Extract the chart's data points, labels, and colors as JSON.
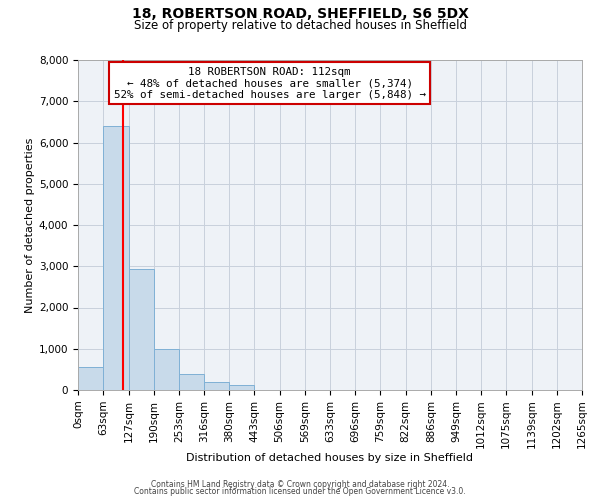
{
  "title": "18, ROBERTSON ROAD, SHEFFIELD, S6 5DX",
  "subtitle": "Size of property relative to detached houses in Sheffield",
  "xlabel": "Distribution of detached houses by size in Sheffield",
  "ylabel": "Number of detached properties",
  "bin_edges": [
    0,
    63,
    127,
    190,
    253,
    316,
    380,
    443,
    506,
    569,
    633,
    696,
    759,
    822,
    886,
    949,
    1012,
    1075,
    1139,
    1202,
    1265
  ],
  "bin_labels": [
    "0sqm",
    "63sqm",
    "127sqm",
    "190sqm",
    "253sqm",
    "316sqm",
    "380sqm",
    "443sqm",
    "506sqm",
    "569sqm",
    "633sqm",
    "696sqm",
    "759sqm",
    "822sqm",
    "886sqm",
    "949sqm",
    "1012sqm",
    "1075sqm",
    "1139sqm",
    "1202sqm",
    "1265sqm"
  ],
  "counts": [
    560,
    6390,
    2930,
    990,
    380,
    185,
    110,
    0,
    0,
    0,
    0,
    0,
    0,
    0,
    0,
    0,
    0,
    0,
    0,
    0
  ],
  "bar_color": "#c8daea",
  "bar_edge_color": "#7fb0d5",
  "vline_x": 112,
  "vline_color": "red",
  "annotation_title": "18 ROBERTSON ROAD: 112sqm",
  "annotation_line1": "← 48% of detached houses are smaller (5,374)",
  "annotation_line2": "52% of semi-detached houses are larger (5,848) →",
  "annotation_box_color": "#ffffff",
  "annotation_box_edge": "#cc0000",
  "ylim": [
    0,
    8000
  ],
  "yticks": [
    0,
    1000,
    2000,
    3000,
    4000,
    5000,
    6000,
    7000,
    8000
  ],
  "footer1": "Contains HM Land Registry data © Crown copyright and database right 2024.",
  "footer2": "Contains public sector information licensed under the Open Government Licence v3.0.",
  "background_color": "#ffffff",
  "plot_background_color": "#eef2f7",
  "grid_color": "#c8d0dc"
}
